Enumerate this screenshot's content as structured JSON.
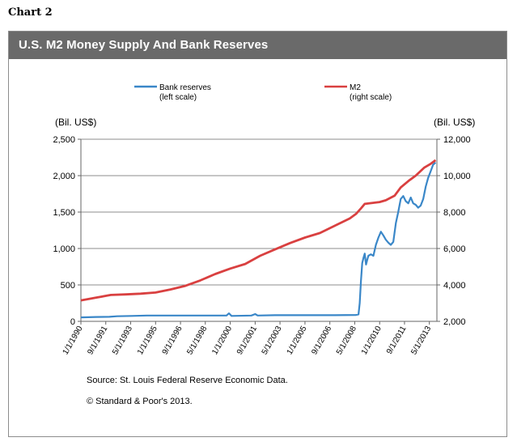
{
  "page": {
    "chart_label": "Chart 2"
  },
  "header": {
    "title": "U.S. M2 Money Supply And Bank Reserves"
  },
  "footer": {
    "source": "Source: St. Louis Federal Reserve Economic Data.",
    "copyright": "© Standard & Poor's 2013."
  },
  "colors": {
    "bank_reserves": "#3a87c8",
    "m2": "#d94040",
    "title_bar": "#6a6a6a",
    "grid": "#8c8c8c"
  },
  "chart_data": {
    "type": "line",
    "title": "U.S. M2 Money Supply And Bank Reserves",
    "legend": [
      {
        "name": "Bank reserves",
        "note": "(left scale)",
        "color": "#3a87c8"
      },
      {
        "name": "M2",
        "note": "(right scale)",
        "color": "#d94040"
      }
    ],
    "legend_position": "top-center",
    "grid": true,
    "left_axis": {
      "label": "(Bil. US$)",
      "range": [
        0,
        2500
      ],
      "ticks": [
        "0",
        "500",
        "1,000",
        "1,500",
        "2,000",
        "2,500"
      ]
    },
    "right_axis": {
      "label": "(Bil. US$)",
      "range": [
        2000,
        12000
      ],
      "ticks": [
        "2,000",
        "4,000",
        "6,000",
        "8,000",
        "10,000",
        "12,000"
      ]
    },
    "x_axis": {
      "range": [
        "1990-01-01",
        "2013-11-01"
      ],
      "ticks": [
        {
          "label": "1/1/1990",
          "date": "1990-01-01"
        },
        {
          "label": "9/1/1991",
          "date": "1991-09-01"
        },
        {
          "label": "5/1/1993",
          "date": "1993-05-01"
        },
        {
          "label": "1/1/1995",
          "date": "1995-01-01"
        },
        {
          "label": "9/1/1996",
          "date": "1996-09-01"
        },
        {
          "label": "5/1/1998",
          "date": "1998-05-01"
        },
        {
          "label": "1/1/2000",
          "date": "2000-01-01"
        },
        {
          "label": "9/1/2001",
          "date": "2001-09-01"
        },
        {
          "label": "5/1/2003",
          "date": "2003-05-01"
        },
        {
          "label": "1/1/2005",
          "date": "2005-01-01"
        },
        {
          "label": "9/1/2006",
          "date": "2006-09-01"
        },
        {
          "label": "5/1/2008",
          "date": "2008-05-01"
        },
        {
          "label": "1/1/2010",
          "date": "2010-01-01"
        },
        {
          "label": "9/1/2011",
          "date": "2011-09-01"
        },
        {
          "label": "5/1/2013",
          "date": "2013-05-01"
        }
      ]
    },
    "series": [
      {
        "name": "Bank reserves",
        "axis": "left",
        "points": [
          [
            "1990-01-01",
            55
          ],
          [
            "1991-01-01",
            60
          ],
          [
            "1991-12-01",
            62
          ],
          [
            "1992-06-01",
            70
          ],
          [
            "1993-06-01",
            75
          ],
          [
            "1994-06-01",
            80
          ],
          [
            "1996-01-01",
            80
          ],
          [
            "1998-01-01",
            80
          ],
          [
            "1999-10-01",
            80
          ],
          [
            "1999-12-01",
            110
          ],
          [
            "2000-02-01",
            75
          ],
          [
            "2001-06-01",
            80
          ],
          [
            "2001-09-01",
            100
          ],
          [
            "2001-11-01",
            80
          ],
          [
            "2003-01-01",
            85
          ],
          [
            "2005-01-01",
            85
          ],
          [
            "2007-01-01",
            85
          ],
          [
            "2008-06-01",
            88
          ],
          [
            "2008-08-01",
            95
          ],
          [
            "2008-09-01",
            250
          ],
          [
            "2008-10-01",
            550
          ],
          [
            "2008-11-01",
            800
          ],
          [
            "2008-12-01",
            870
          ],
          [
            "2009-01-01",
            930
          ],
          [
            "2009-02-01",
            780
          ],
          [
            "2009-03-01",
            840
          ],
          [
            "2009-04-01",
            900
          ],
          [
            "2009-06-01",
            920
          ],
          [
            "2009-08-01",
            900
          ],
          [
            "2009-10-01",
            1050
          ],
          [
            "2009-12-01",
            1150
          ],
          [
            "2010-02-01",
            1230
          ],
          [
            "2010-04-01",
            1180
          ],
          [
            "2010-06-01",
            1120
          ],
          [
            "2010-08-01",
            1080
          ],
          [
            "2010-10-01",
            1050
          ],
          [
            "2010-12-01",
            1090
          ],
          [
            "2011-02-01",
            1350
          ],
          [
            "2011-04-01",
            1500
          ],
          [
            "2011-06-01",
            1680
          ],
          [
            "2011-08-01",
            1720
          ],
          [
            "2011-10-01",
            1650
          ],
          [
            "2011-12-01",
            1620
          ],
          [
            "2012-02-01",
            1700
          ],
          [
            "2012-04-01",
            1620
          ],
          [
            "2012-06-01",
            1600
          ],
          [
            "2012-08-01",
            1560
          ],
          [
            "2012-10-01",
            1590
          ],
          [
            "2012-12-01",
            1680
          ],
          [
            "2013-02-01",
            1850
          ],
          [
            "2013-04-01",
            1970
          ],
          [
            "2013-06-01",
            2060
          ],
          [
            "2013-08-01",
            2150
          ],
          [
            "2013-10-01",
            2180
          ]
        ]
      },
      {
        "name": "M2",
        "axis": "right",
        "points": [
          [
            "1990-01-01",
            3150
          ],
          [
            "1991-01-01",
            3300
          ],
          [
            "1992-01-01",
            3450
          ],
          [
            "1993-01-01",
            3480
          ],
          [
            "1994-01-01",
            3520
          ],
          [
            "1995-01-01",
            3580
          ],
          [
            "1996-01-01",
            3750
          ],
          [
            "1997-01-01",
            3950
          ],
          [
            "1998-01-01",
            4250
          ],
          [
            "1999-01-01",
            4600
          ],
          [
            "2000-01-01",
            4900
          ],
          [
            "2001-01-01",
            5150
          ],
          [
            "2002-01-01",
            5600
          ],
          [
            "2003-01-01",
            5950
          ],
          [
            "2004-01-01",
            6300
          ],
          [
            "2005-01-01",
            6600
          ],
          [
            "2006-01-01",
            6850
          ],
          [
            "2007-01-01",
            7250
          ],
          [
            "2008-01-01",
            7650
          ],
          [
            "2008-06-01",
            7900
          ],
          [
            "2008-10-01",
            8200
          ],
          [
            "2009-01-01",
            8450
          ],
          [
            "2010-01-01",
            8550
          ],
          [
            "2010-06-01",
            8650
          ],
          [
            "2011-01-01",
            8900
          ],
          [
            "2011-06-01",
            9350
          ],
          [
            "2012-01-01",
            9750
          ],
          [
            "2012-06-01",
            10000
          ],
          [
            "2013-01-01",
            10450
          ],
          [
            "2013-06-01",
            10650
          ],
          [
            "2013-10-01",
            10850
          ]
        ]
      }
    ]
  }
}
